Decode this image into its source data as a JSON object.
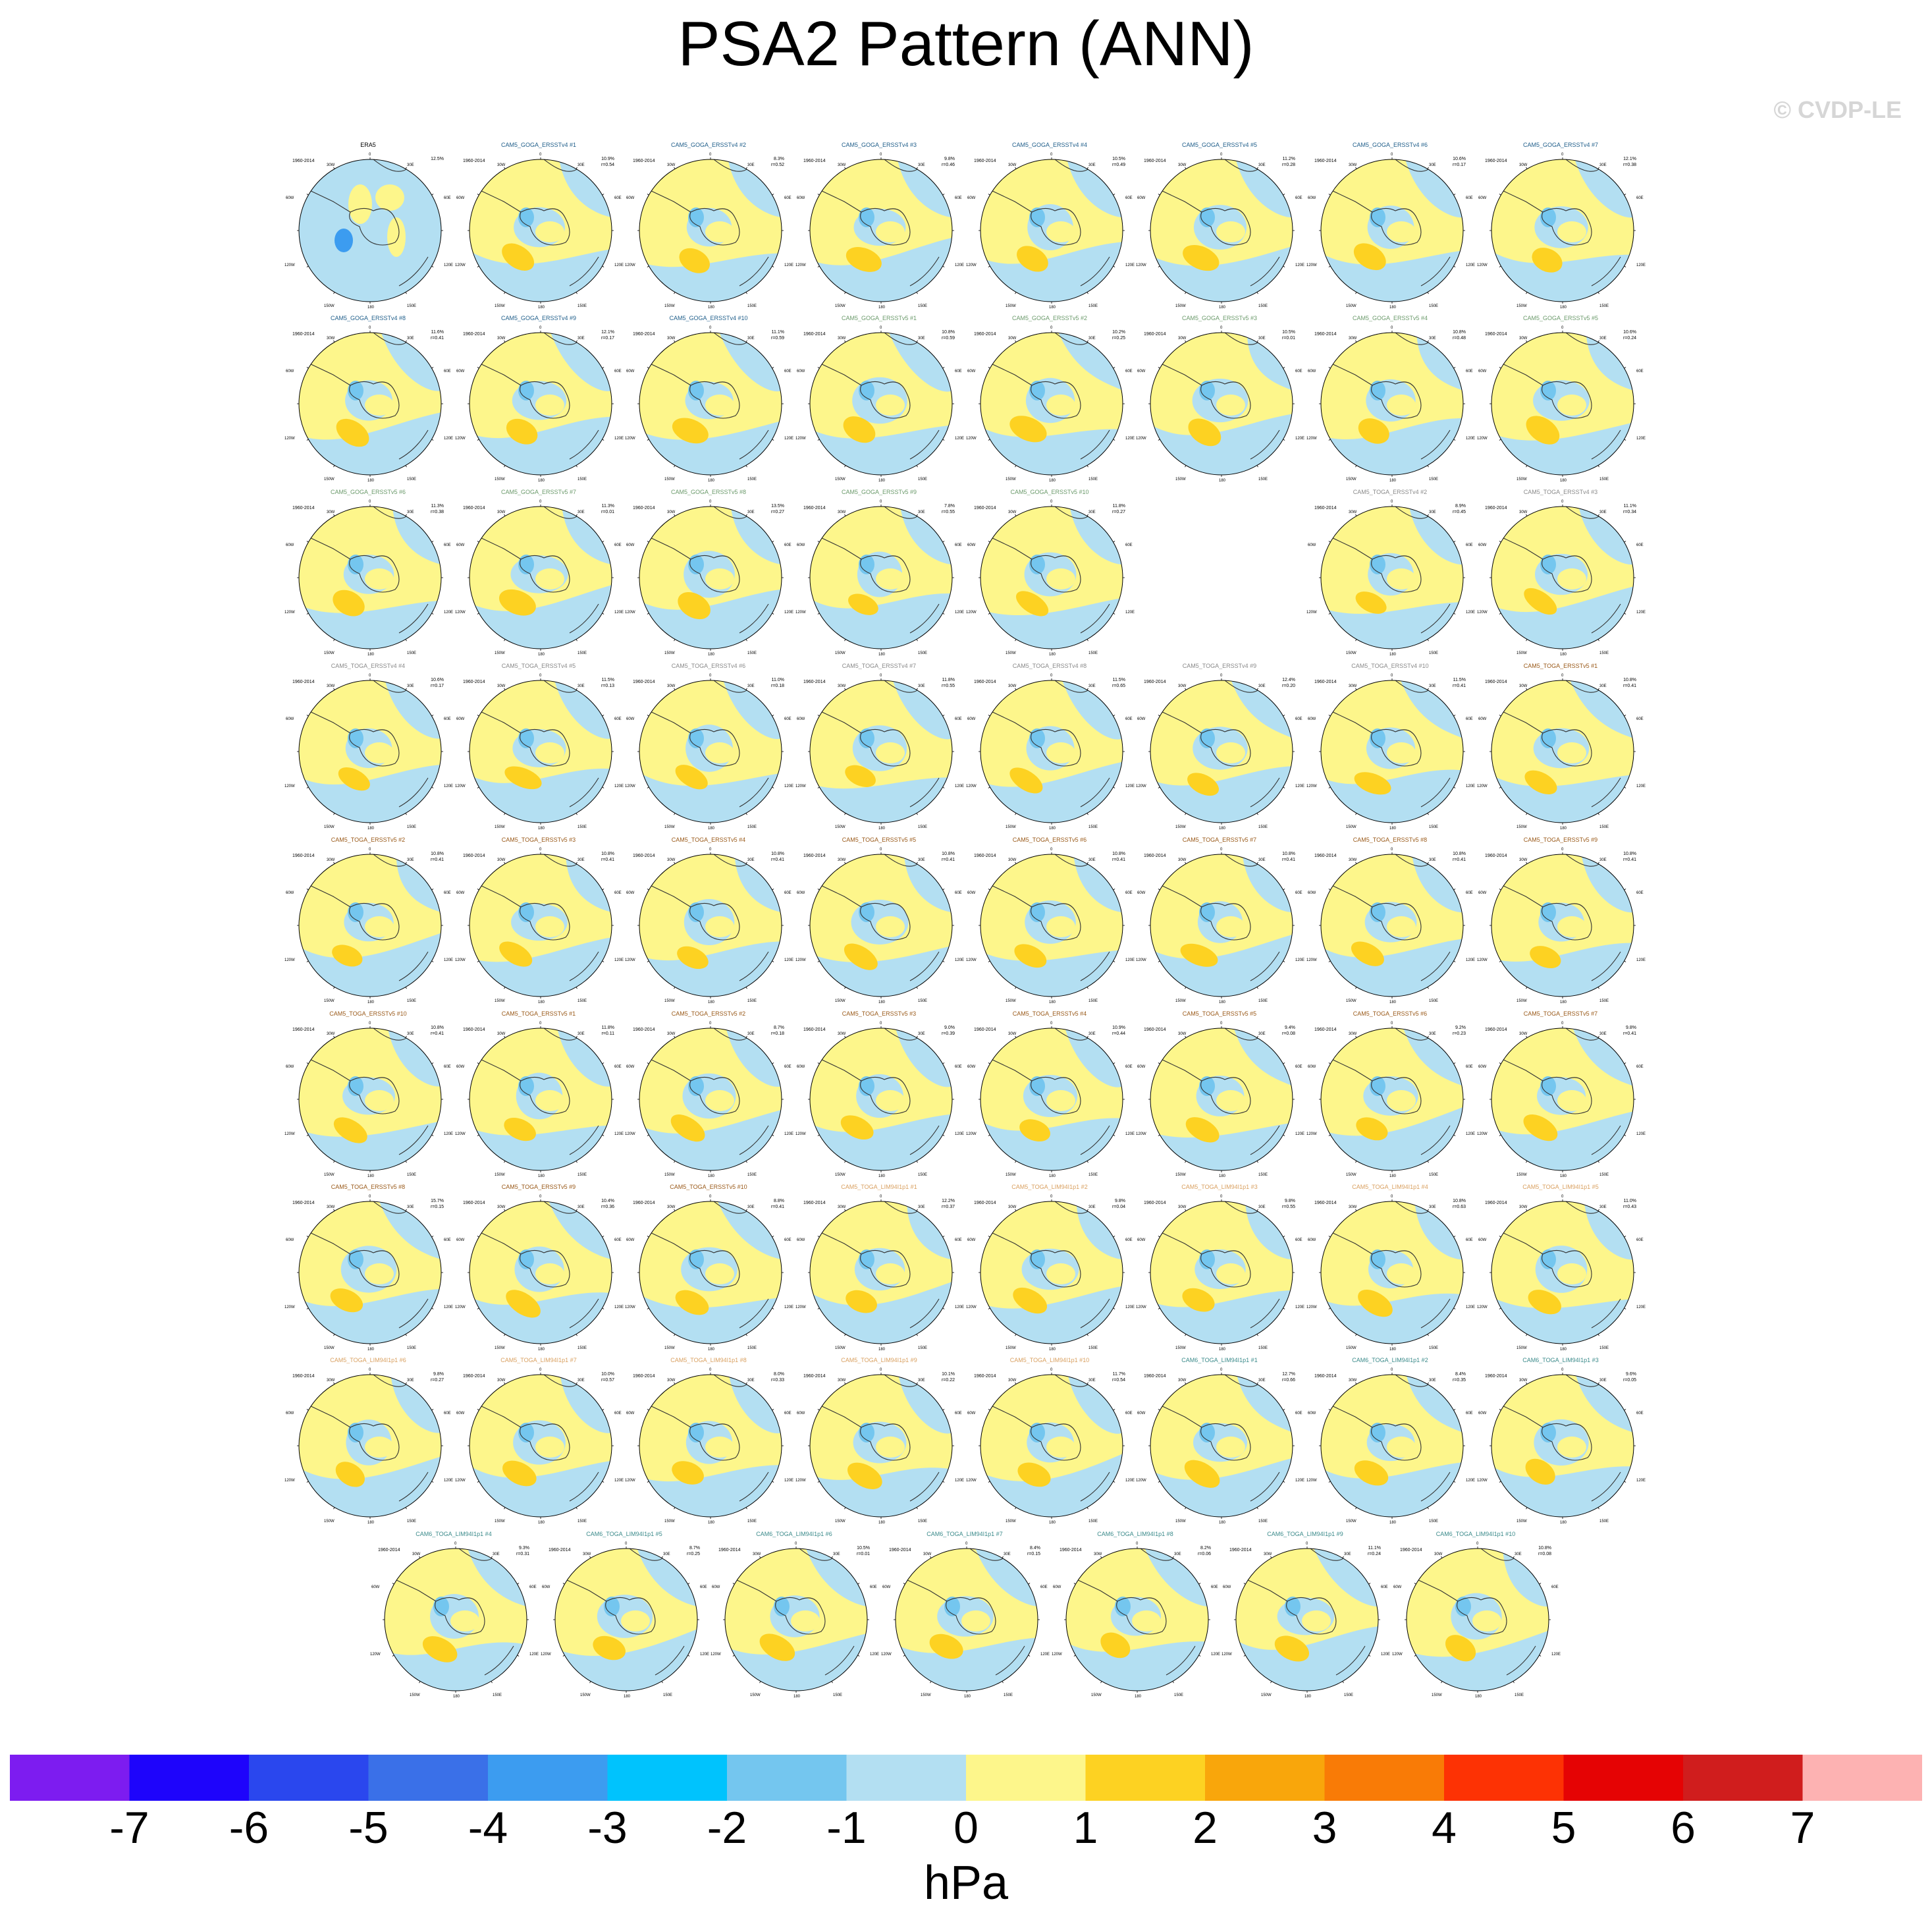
{
  "title": "PSA2 Pattern (ANN)",
  "watermark": "© CVDP-LE",
  "unit": "hPa",
  "colors": {
    "ocean": "#b3dff2",
    "lightblue": "#74c6ef",
    "yellow": "#fdf68b",
    "orange": "#fdd222",
    "deeporange": "#f9a60b",
    "blue": "#3c9cf0",
    "coast": "#333333",
    "title_goga4": "#1f5e8a",
    "title_goga5": "#6b9a6b",
    "title_toga4": "#8a8a8a",
    "title_toga5": "#9a5a1a",
    "title_togaV5": "#5a5acc",
    "title_lim": "#d9a060",
    "title_lim94": "#3a8a8a",
    "title_obs": "#000000"
  },
  "chart_data": {
    "type": "heatmap",
    "projection": "south-polar-stereographic",
    "years": "1960-2014",
    "colorbar": {
      "ticks": [
        "-7",
        "-6",
        "-5",
        "-4",
        "-3",
        "-2",
        "-1",
        "0",
        "1",
        "2",
        "3",
        "4",
        "5",
        "6",
        "7"
      ],
      "colors": [
        "#7d1cf0",
        "#1e04fb",
        "#2a47ee",
        "#3a70e8",
        "#3c9cf0",
        "#00c3fd",
        "#74c6ef",
        "#b3dff2",
        "#fdf68b",
        "#fdd222",
        "#f9a60b",
        "#f97b06",
        "#fd3204",
        "#e50304",
        "#d01d1d",
        "#fdb2b2"
      ]
    },
    "lon_labels": {
      "top": "0",
      "upper_left": "30W",
      "upper_right": "30E",
      "left_upper": "60W",
      "right_upper": "60E",
      "left_lower": "120W",
      "right_lower": "120E",
      "bottom_left": "150W",
      "bottom": "180",
      "bottom_right": "150E"
    },
    "panels": [
      {
        "name": "ERA5",
        "variance": "12.5%",
        "r": ""
      },
      {
        "name": "CAM5_GOGA_ERSSTv4 #1",
        "variance": "10.9%",
        "r": "r=0.54"
      },
      {
        "name": "CAM5_GOGA_ERSSTv4 #2",
        "variance": "8.3%",
        "r": "r=0.52"
      },
      {
        "name": "CAM5_GOGA_ERSSTv4 #3",
        "variance": "9.8%",
        "r": "r=0.46"
      },
      {
        "name": "CAM5_GOGA_ERSSTv4 #4",
        "variance": "10.5%",
        "r": "r=0.49"
      },
      {
        "name": "CAM5_GOGA_ERSSTv4 #5",
        "variance": "11.2%",
        "r": "r=0.28"
      },
      {
        "name": "CAM5_GOGA_ERSSTv4 #6",
        "variance": "10.6%",
        "r": "r=0.17"
      },
      {
        "name": "CAM5_GOGA_ERSSTv4 #7",
        "variance": "12.1%",
        "r": "r=0.38"
      },
      {
        "name": "CAM5_GOGA_ERSSTv4 #8",
        "variance": "11.6%",
        "r": "r=0.41"
      },
      {
        "name": "CAM5_GOGA_ERSSTv4 #9",
        "variance": "12.1%",
        "r": "r=0.17"
      },
      {
        "name": "CAM5_GOGA_ERSSTv4 #10",
        "variance": "11.1%",
        "r": "r=0.59"
      },
      {
        "name": "CAM5_GOGA_ERSSTv5 #1",
        "variance": "10.8%",
        "r": "r=0.59"
      },
      {
        "name": "CAM5_GOGA_ERSSTv5 #2",
        "variance": "10.2%",
        "r": "r=0.25"
      },
      {
        "name": "CAM5_GOGA_ERSSTv5 #3",
        "variance": "10.5%",
        "r": "r=0.01"
      },
      {
        "name": "CAM5_GOGA_ERSSTv5 #4",
        "variance": "10.8%",
        "r": "r=0.48"
      },
      {
        "name": "CAM5_GOGA_ERSSTv5 #5",
        "variance": "10.6%",
        "r": "r=0.24"
      },
      {
        "name": "CAM5_GOGA_ERSSTv5 #6",
        "variance": "11.3%",
        "r": "r=0.38"
      },
      {
        "name": "CAM5_GOGA_ERSSTv5 #7",
        "variance": "11.3%",
        "r": "r=0.01"
      },
      {
        "name": "CAM5_GOGA_ERSSTv5 #8",
        "variance": "13.5%",
        "r": "r=0.27"
      },
      {
        "name": "CAM5_GOGA_ERSSTv5 #9",
        "variance": "7.8%",
        "r": "r=0.55"
      },
      {
        "name": "CAM5_GOGA_ERSSTv5 #10",
        "variance": "11.8%",
        "r": "r=0.27"
      },
      {
        "name": "CAM5_TOGA_ERSSTv4 #2",
        "variance": "8.9%",
        "r": "r=0.45"
      },
      {
        "name": "CAM5_TOGA_ERSSTv4 #3",
        "variance": "11.1%",
        "r": "r=0.34"
      },
      {
        "name": "CAM5_TOGA_ERSSTv4 #4",
        "variance": "10.6%",
        "r": "r=0.17"
      },
      {
        "name": "CAM5_TOGA_ERSSTv4 #5",
        "variance": "11.5%",
        "r": "r=0.13"
      },
      {
        "name": "CAM5_TOGA_ERSSTv4 #6",
        "variance": "11.0%",
        "r": "r=0.18"
      },
      {
        "name": "CAM5_TOGA_ERSSTv4 #7",
        "variance": "11.8%",
        "r": "r=0.55"
      },
      {
        "name": "CAM5_TOGA_ERSSTv4 #8",
        "variance": "11.5%",
        "r": "r=0.65"
      },
      {
        "name": "CAM5_TOGA_ERSSTv4 #9",
        "variance": "12.4%",
        "r": "r=0.20"
      },
      {
        "name": "CAM5_TOGA_ERSSTv4 #10",
        "variance": "11.5%",
        "r": "r=0.41"
      },
      {
        "name": "CAM5_TOGA_ERSSTv5 #1",
        "variance": "10.8%",
        "r": "r=0.41"
      },
      {
        "name": "CAM5_TOGA_ERSSTv5 #2",
        "variance": "10.8%",
        "r": "r=0.41"
      },
      {
        "name": "CAM5_TOGA_ERSSTv5 #3",
        "variance": "10.8%",
        "r": "r=0.41"
      },
      {
        "name": "CAM5_TOGA_ERSSTv5 #4",
        "variance": "10.8%",
        "r": "r=0.41"
      },
      {
        "name": "CAM5_TOGA_ERSSTv5 #5",
        "variance": "10.8%",
        "r": "r=0.41"
      },
      {
        "name": "CAM5_TOGA_ERSSTv5 #6",
        "variance": "10.8%",
        "r": "r=0.41"
      },
      {
        "name": "CAM5_TOGA_ERSSTv5 #7",
        "variance": "10.8%",
        "r": "r=0.41"
      },
      {
        "name": "CAM5_TOGA_ERSSTv5 #8",
        "variance": "10.8%",
        "r": "r=0.41"
      },
      {
        "name": "CAM5_TOGA_ERSSTv5 #9",
        "variance": "10.8%",
        "r": "r=0.41"
      },
      {
        "name": "CAM5_TOGA_ERSSTv5 #10",
        "variance": "10.8%",
        "r": "r=0.41"
      },
      {
        "name": "CAM5_TOGA_ERSSTv5 #1",
        "variance": "11.8%",
        "r": "r=0.11"
      },
      {
        "name": "CAM5_TOGA_ERSSTv5 #2",
        "variance": "8.7%",
        "r": "r=0.18"
      },
      {
        "name": "CAM5_TOGA_ERSSTv5 #3",
        "variance": "9.0%",
        "r": "r=0.39"
      },
      {
        "name": "CAM5_TOGA_ERSSTv5 #4",
        "variance": "10.9%",
        "r": "r=0.44"
      },
      {
        "name": "CAM5_TOGA_ERSSTv5 #5",
        "variance": "9.4%",
        "r": "r=0.08"
      },
      {
        "name": "CAM5_TOGA_ERSSTv5 #6",
        "variance": "9.2%",
        "r": "r=0.23"
      },
      {
        "name": "CAM5_TOGA_ERSSTv5 #7",
        "variance": "9.8%",
        "r": "r=0.41"
      },
      {
        "name": "CAM5_TOGA_ERSSTv5 #8",
        "variance": "15.7%",
        "r": "r=0.15"
      },
      {
        "name": "CAM5_TOGA_ERSSTv5 #9",
        "variance": "10.4%",
        "r": "r=0.36"
      },
      {
        "name": "CAM5_TOGA_ERSSTv5 #10",
        "variance": "8.8%",
        "r": "r=0.41"
      },
      {
        "name": "CAM5_TOGA_LIM94I1p1 #1",
        "variance": "12.2%",
        "r": "r=0.37"
      },
      {
        "name": "CAM5_TOGA_LIM94I1p1 #2",
        "variance": "9.8%",
        "r": "r=0.04"
      },
      {
        "name": "CAM5_TOGA_LIM94I1p1 #3",
        "variance": "9.8%",
        "r": "r=0.55"
      },
      {
        "name": "CAM5_TOGA_LIM94I1p1 #4",
        "variance": "10.8%",
        "r": "r=0.63"
      },
      {
        "name": "CAM5_TOGA_LIM94I1p1 #5",
        "variance": "11.0%",
        "r": "r=0.43"
      },
      {
        "name": "CAM5_TOGA_LIM94I1p1 #6",
        "variance": "9.8%",
        "r": "r=0.27"
      },
      {
        "name": "CAM5_TOGA_LIM94I1p1 #7",
        "variance": "10.0%",
        "r": "r=0.57"
      },
      {
        "name": "CAM5_TOGA_LIM94I1p1 #8",
        "variance": "8.0%",
        "r": "r=0.33"
      },
      {
        "name": "CAM5_TOGA_LIM94I1p1 #9",
        "variance": "10.1%",
        "r": "r=0.22"
      },
      {
        "name": "CAM5_TOGA_LIM94I1p1 #10",
        "variance": "11.7%",
        "r": "r=0.54"
      },
      {
        "name": "CAM6_TOGA_LIM94I1p1 #1",
        "variance": "12.7%",
        "r": "r=0.66"
      },
      {
        "name": "CAM6_TOGA_LIM94I1p1 #2",
        "variance": "8.4%",
        "r": "r=0.35"
      },
      {
        "name": "CAM6_TOGA_LIM94I1p1 #3",
        "variance": "9.6%",
        "r": "r=0.05"
      },
      {
        "name": "CAM6_TOGA_LIM94I1p1 #4",
        "variance": "9.3%",
        "r": "r=0.31"
      },
      {
        "name": "CAM6_TOGA_LIM94I1p1 #5",
        "variance": "8.7%",
        "r": "r=0.25"
      },
      {
        "name": "CAM6_TOGA_LIM94I1p1 #6",
        "variance": "10.5%",
        "r": "r=0.01"
      },
      {
        "name": "CAM6_TOGA_LIM94I1p1 #7",
        "variance": "8.4%",
        "r": "r=0.15"
      },
      {
        "name": "CAM6_TOGA_LIM94I1p1 #8",
        "variance": "8.2%",
        "r": "r=0.06"
      },
      {
        "name": "CAM6_TOGA_LIM94I1p1 #9",
        "variance": "11.1%",
        "r": "r=0.24"
      },
      {
        "name": "CAM6_TOGA_LIM94I1p1 #10",
        "variance": "10.8%",
        "r": "r=0.08"
      }
    ]
  }
}
